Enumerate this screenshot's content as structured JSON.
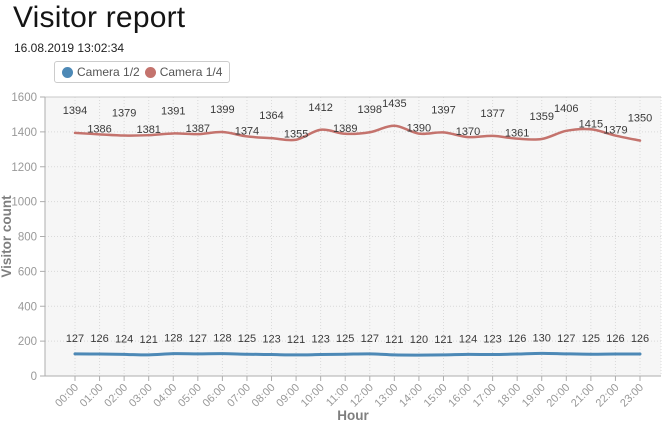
{
  "header": {
    "title": "Visitor report",
    "timestamp": "16.08.2019 13:02:34"
  },
  "chart_data": {
    "type": "line",
    "x": [
      "00:00",
      "01:00",
      "02:00",
      "03:00",
      "04:00",
      "05:00",
      "06:00",
      "07:00",
      "08:00",
      "09:00",
      "10:00",
      "11:00",
      "12:00",
      "13:00",
      "14:00",
      "15:00",
      "16:00",
      "17:00",
      "18:00",
      "19:00",
      "20:00",
      "21:00",
      "22:00",
      "23:00"
    ],
    "series": [
      {
        "name": "Camera 1/2",
        "color": "#4d89b6",
        "values": [
          127,
          126,
          124,
          121,
          128,
          127,
          128,
          125,
          123,
          121,
          123,
          125,
          127,
          121,
          120,
          121,
          124,
          123,
          126,
          130,
          127,
          125,
          126,
          126
        ]
      },
      {
        "name": "Camera 1/4",
        "color": "#c4736d",
        "values": [
          1394,
          1386,
          1379,
          1381,
          1391,
          1387,
          1399,
          1374,
          1364,
          1355,
          1412,
          1389,
          1398,
          1435,
          1390,
          1397,
          1370,
          1377,
          1361,
          1359,
          1406,
          1415,
          1379,
          1350
        ],
        "label_rows": [
          "high",
          "low",
          "high",
          "low",
          "high",
          "low",
          "high",
          "low",
          "high",
          "low",
          "high",
          "low",
          "high",
          "high",
          "low",
          "high",
          "low",
          "high",
          "low",
          "high",
          "high",
          "low",
          "low",
          "high"
        ]
      }
    ],
    "title": "",
    "xlabel": "Hour",
    "ylabel": "Visitor count",
    "ylim": [
      0,
      1600
    ],
    "ytick_step": 200,
    "yticks": [
      0,
      200,
      400,
      600,
      800,
      1000,
      1200,
      1400,
      1600
    ],
    "grid": "dotted",
    "plot_background": "#f6f6f6",
    "legend_position": "top-left",
    "show_point_labels": true
  }
}
